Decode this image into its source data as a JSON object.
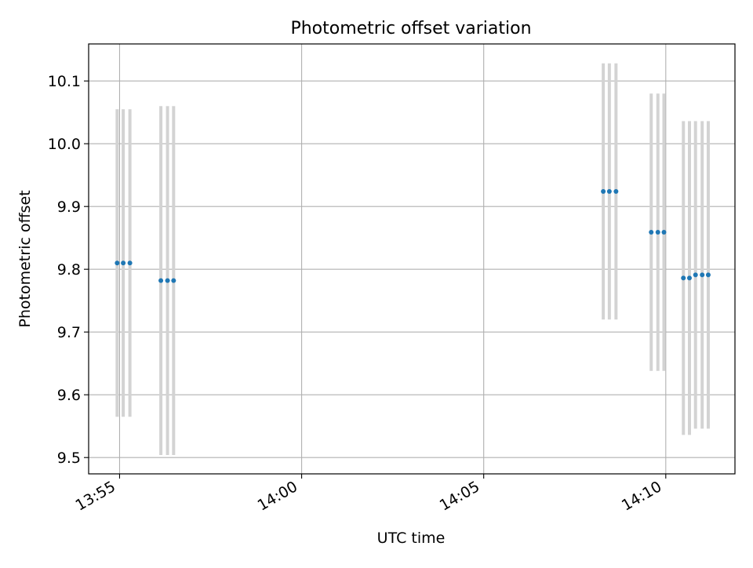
{
  "chart_data": {
    "type": "scatter",
    "title": "Photometric offset variation",
    "xlabel": "UTC time",
    "ylabel": "Photometric offset",
    "x_unit": "UTC time (HH:MM:SS)",
    "xlim": [
      "13:54:09",
      "14:11:54"
    ],
    "ylim": [
      9.474,
      10.159
    ],
    "x_ticks": [
      "13:55",
      "14:00",
      "14:05",
      "14:10"
    ],
    "y_ticks": [
      9.5,
      9.6,
      9.7,
      9.8,
      9.9,
      10.0,
      10.1
    ],
    "grid": true,
    "marker_color": "#1f77b4",
    "errorbar_color": "#d3d3d3",
    "series": [
      {
        "points": [
          {
            "x": "13:54:56",
            "y": 9.81,
            "yerr": 0.245
          },
          {
            "x": "13:55:06",
            "y": 9.81,
            "yerr": 0.245
          },
          {
            "x": "13:55:17",
            "y": 9.81,
            "yerr": 0.245
          },
          {
            "x": "13:56:08",
            "y": 9.782,
            "yerr": 0.278
          },
          {
            "x": "13:56:19",
            "y": 9.782,
            "yerr": 0.278
          },
          {
            "x": "13:56:29",
            "y": 9.782,
            "yerr": 0.278
          },
          {
            "x": "14:08:17",
            "y": 9.924,
            "yerr": 0.204
          },
          {
            "x": "14:08:27",
            "y": 9.924,
            "yerr": 0.204
          },
          {
            "x": "14:08:38",
            "y": 9.924,
            "yerr": 0.204
          },
          {
            "x": "14:09:36",
            "y": 9.859,
            "yerr": 0.221
          },
          {
            "x": "14:09:47",
            "y": 9.859,
            "yerr": 0.221
          },
          {
            "x": "14:09:57",
            "y": 9.859,
            "yerr": 0.221
          },
          {
            "x": "14:10:29",
            "y": 9.786,
            "yerr": 0.25
          },
          {
            "x": "14:10:39",
            "y": 9.786,
            "yerr": 0.25
          },
          {
            "x": "14:10:49",
            "y": 9.791,
            "yerr": 0.245
          },
          {
            "x": "14:11:00",
            "y": 9.791,
            "yerr": 0.245
          },
          {
            "x": "14:11:10",
            "y": 9.791,
            "yerr": 0.245
          }
        ]
      }
    ]
  }
}
